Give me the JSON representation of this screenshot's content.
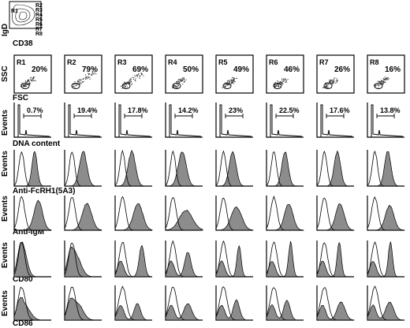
{
  "overview": {
    "ylabel": "IgD",
    "xlabel": "CD38",
    "gates": [
      "R1",
      "R2",
      "R3",
      "R4",
      "R5",
      "R6",
      "R7",
      "R8"
    ]
  },
  "regions": [
    "R1",
    "R2",
    "R3",
    "R4",
    "R5",
    "R6",
    "R7",
    "R8"
  ],
  "scatter_percents": [
    "20%",
    "79%",
    "69%",
    "50%",
    "49%",
    "46%",
    "26%",
    "16%"
  ],
  "dna_percents": [
    "0.7%",
    "19.4%",
    "17.8%",
    "14.2%",
    "23%",
    "22.5%",
    "17.6%",
    "13.8%"
  ],
  "row_labels": {
    "scatter_y": "SSC",
    "scatter_x": "FSC",
    "dna_y": "Events",
    "dna_x": "DNA content",
    "fcrh_y": "Events",
    "fcrh_x": "Anti-FcRH1(5A3)",
    "igm_y": "Events",
    "igm_x": "Anti-IgM",
    "cd80_y": "Events",
    "cd80_x": "CD80",
    "cd86_y": "Events",
    "cd86_x": "CD86"
  },
  "colors": {
    "fill": "#8c8c8c",
    "stroke": "#000000"
  }
}
